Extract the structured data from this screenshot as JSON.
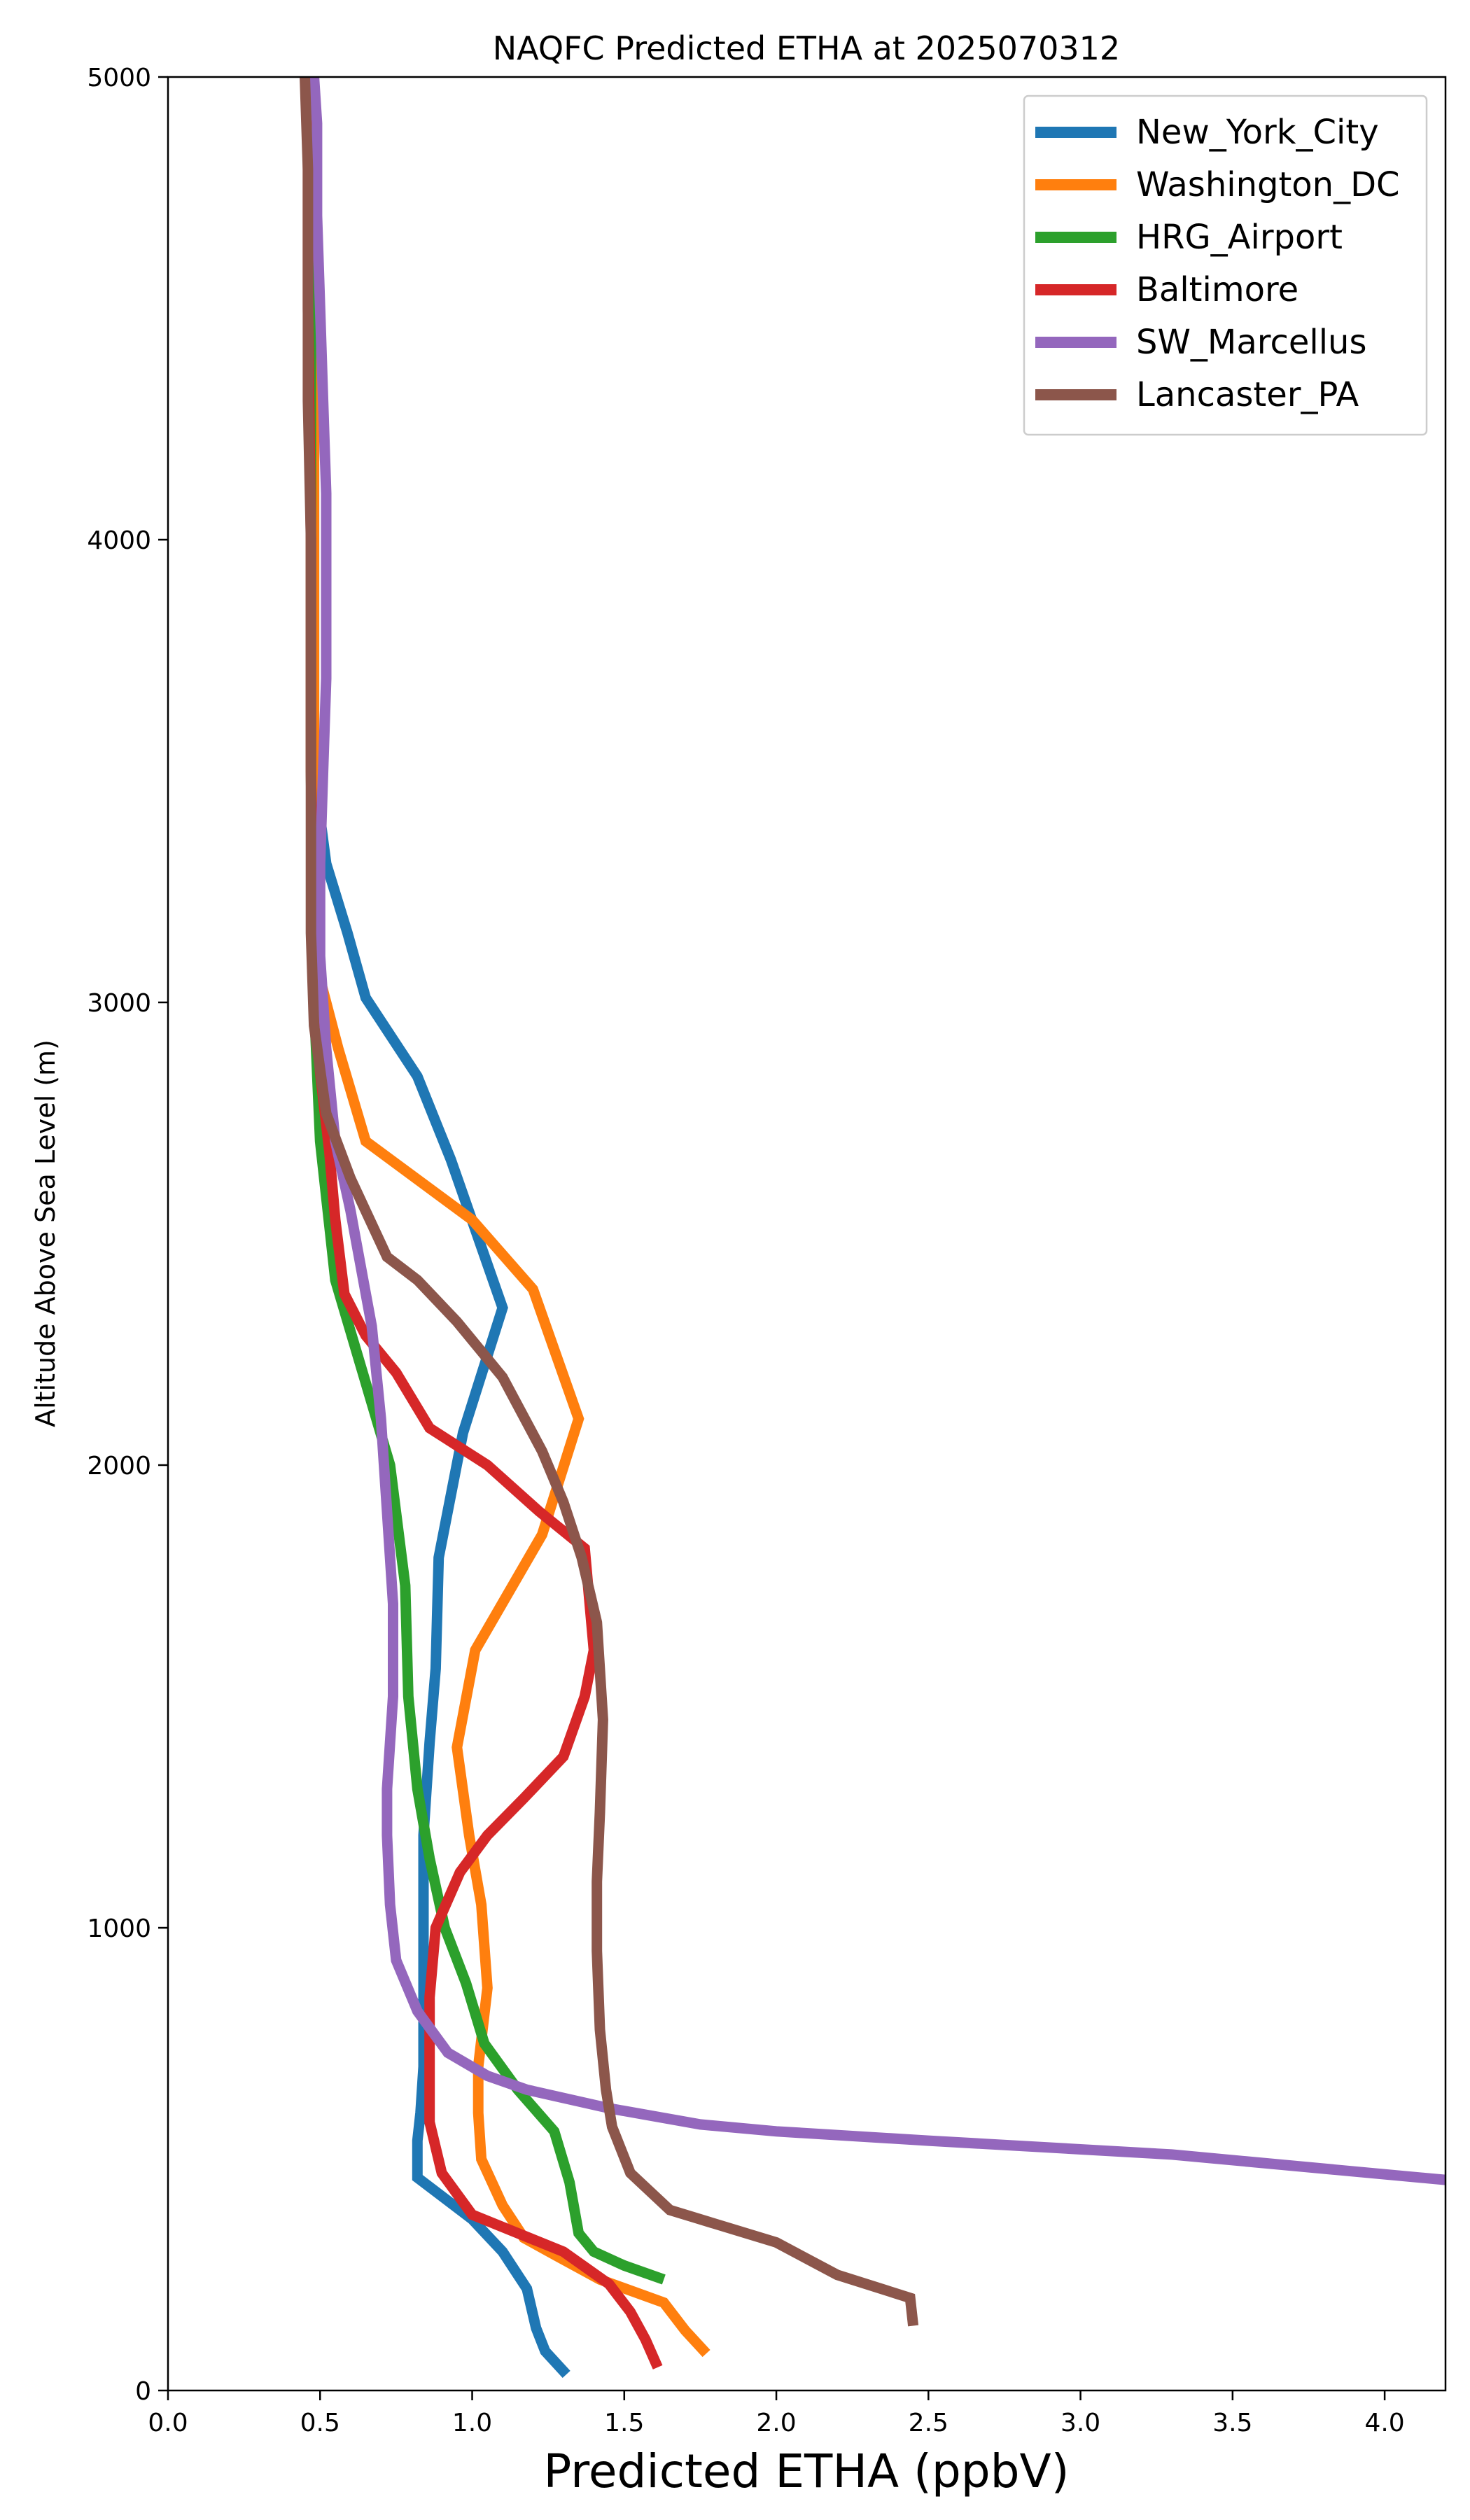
{
  "chart_data": {
    "type": "line",
    "title": "NAQFC Predicted ETHA at 2025070312",
    "xlabel": "Predicted ETHA (ppbV)",
    "ylabel": "Altitude Above Sea Level (m)",
    "xlim": [
      0,
      4.2
    ],
    "ylim": [
      0,
      5000
    ],
    "xticks": [
      0,
      0.5,
      1.0,
      1.5,
      2.0,
      2.5,
      3.0,
      3.5,
      4.0
    ],
    "xtick_labels": [
      "0.0",
      "0.5",
      "1.0",
      "1.5",
      "2.0",
      "2.5",
      "3.0",
      "3.5",
      "4.0"
    ],
    "yticks": [
      0,
      1000,
      2000,
      3000,
      4000,
      5000
    ],
    "ytick_labels": [
      "0",
      "1000",
      "2000",
      "3000",
      "4000",
      "5000"
    ],
    "grid": false,
    "legend_position": "top-right",
    "series": [
      {
        "name": "New_York_City",
        "color": "#1f77b4",
        "points": [
          [
            1.31,
            35
          ],
          [
            1.24,
            85
          ],
          [
            1.21,
            135
          ],
          [
            1.18,
            220
          ],
          [
            1.1,
            300
          ],
          [
            1.0,
            370
          ],
          [
            0.82,
            460
          ],
          [
            0.82,
            540
          ],
          [
            0.83,
            600
          ],
          [
            0.84,
            700
          ],
          [
            0.84,
            800
          ],
          [
            0.84,
            900
          ],
          [
            0.84,
            1000
          ],
          [
            0.84,
            1100
          ],
          [
            0.84,
            1200
          ],
          [
            0.85,
            1300
          ],
          [
            0.86,
            1400
          ],
          [
            0.88,
            1560
          ],
          [
            0.89,
            1800
          ],
          [
            0.97,
            2070
          ],
          [
            1.1,
            2340
          ],
          [
            0.93,
            2660
          ],
          [
            0.82,
            2840
          ],
          [
            0.65,
            3010
          ],
          [
            0.59,
            3150
          ],
          [
            0.52,
            3300
          ],
          [
            0.48,
            3500
          ],
          [
            0.48,
            3800
          ],
          [
            0.48,
            4200
          ],
          [
            0.48,
            4600
          ],
          [
            0.47,
            5000
          ]
        ]
      },
      {
        "name": "Washington_DC",
        "color": "#ff7f0e",
        "points": [
          [
            1.77,
            80
          ],
          [
            1.7,
            130
          ],
          [
            1.63,
            190
          ],
          [
            1.42,
            240
          ],
          [
            1.28,
            290
          ],
          [
            1.17,
            330
          ],
          [
            1.1,
            400
          ],
          [
            1.03,
            500
          ],
          [
            1.02,
            600
          ],
          [
            1.02,
            700
          ],
          [
            1.05,
            870
          ],
          [
            1.03,
            1050
          ],
          [
            0.99,
            1200
          ],
          [
            0.95,
            1390
          ],
          [
            1.01,
            1600
          ],
          [
            1.23,
            1850
          ],
          [
            1.35,
            2100
          ],
          [
            1.2,
            2380
          ],
          [
            1.0,
            2530
          ],
          [
            0.65,
            2700
          ],
          [
            0.56,
            2900
          ],
          [
            0.5,
            3050
          ],
          [
            0.48,
            3300
          ],
          [
            0.48,
            3700
          ],
          [
            0.48,
            4200
          ],
          [
            0.47,
            5000
          ]
        ]
      },
      {
        "name": "HRG_Airport",
        "color": "#2ca02c",
        "points": [
          [
            1.63,
            240
          ],
          [
            1.5,
            270
          ],
          [
            1.4,
            300
          ],
          [
            1.35,
            340
          ],
          [
            1.32,
            450
          ],
          [
            1.27,
            560
          ],
          [
            1.15,
            650
          ],
          [
            1.04,
            750
          ],
          [
            0.98,
            880
          ],
          [
            0.91,
            1000
          ],
          [
            0.86,
            1150
          ],
          [
            0.82,
            1300
          ],
          [
            0.79,
            1500
          ],
          [
            0.78,
            1740
          ],
          [
            0.73,
            2000
          ],
          [
            0.64,
            2200
          ],
          [
            0.55,
            2400
          ],
          [
            0.5,
            2700
          ],
          [
            0.48,
            3000
          ],
          [
            0.47,
            3500
          ],
          [
            0.47,
            4000
          ],
          [
            0.47,
            4500
          ],
          [
            0.46,
            5000
          ]
        ]
      },
      {
        "name": "Baltimore",
        "color": "#d62728",
        "points": [
          [
            1.61,
            50
          ],
          [
            1.57,
            110
          ],
          [
            1.52,
            170
          ],
          [
            1.45,
            230
          ],
          [
            1.3,
            300
          ],
          [
            1.15,
            340
          ],
          [
            1.0,
            380
          ],
          [
            0.9,
            470
          ],
          [
            0.86,
            580
          ],
          [
            0.86,
            700
          ],
          [
            0.86,
            850
          ],
          [
            0.88,
            1000
          ],
          [
            0.96,
            1120
          ],
          [
            1.05,
            1200
          ],
          [
            1.17,
            1280
          ],
          [
            1.3,
            1370
          ],
          [
            1.37,
            1500
          ],
          [
            1.4,
            1600
          ],
          [
            1.37,
            1820
          ],
          [
            1.22,
            1900
          ],
          [
            1.05,
            2000
          ],
          [
            0.86,
            2080
          ],
          [
            0.75,
            2200
          ],
          [
            0.65,
            2280
          ],
          [
            0.58,
            2370
          ],
          [
            0.55,
            2530
          ],
          [
            0.53,
            2680
          ],
          [
            0.5,
            2850
          ],
          [
            0.48,
            3050
          ],
          [
            0.47,
            3500
          ],
          [
            0.47,
            4000
          ],
          [
            0.46,
            4500
          ],
          [
            0.46,
            5000
          ]
        ]
      },
      {
        "name": "SW_Marcellus",
        "color": "#9467bd",
        "points": [
          [
            4.2,
            455
          ],
          [
            3.3,
            510
          ],
          [
            2.5,
            540
          ],
          [
            2.0,
            560
          ],
          [
            1.75,
            575
          ],
          [
            1.45,
            610
          ],
          [
            1.18,
            650
          ],
          [
            1.05,
            680
          ],
          [
            0.92,
            730
          ],
          [
            0.82,
            820
          ],
          [
            0.75,
            930
          ],
          [
            0.73,
            1050
          ],
          [
            0.72,
            1200
          ],
          [
            0.72,
            1300
          ],
          [
            0.73,
            1400
          ],
          [
            0.74,
            1500
          ],
          [
            0.74,
            1700
          ],
          [
            0.72,
            1900
          ],
          [
            0.7,
            2100
          ],
          [
            0.67,
            2300
          ],
          [
            0.6,
            2550
          ],
          [
            0.55,
            2700
          ],
          [
            0.52,
            2900
          ],
          [
            0.5,
            3100
          ],
          [
            0.5,
            3300
          ],
          [
            0.51,
            3500
          ],
          [
            0.52,
            3700
          ],
          [
            0.52,
            3900
          ],
          [
            0.52,
            4100
          ],
          [
            0.51,
            4300
          ],
          [
            0.5,
            4500
          ],
          [
            0.49,
            4700
          ],
          [
            0.49,
            4900
          ],
          [
            0.48,
            5000
          ]
        ]
      },
      {
        "name": "Lancaster_PA",
        "color": "#8c564b",
        "points": [
          [
            2.45,
            140
          ],
          [
            2.44,
            200
          ],
          [
            2.2,
            250
          ],
          [
            2.0,
            320
          ],
          [
            1.65,
            390
          ],
          [
            1.52,
            470
          ],
          [
            1.46,
            570
          ],
          [
            1.44,
            650
          ],
          [
            1.42,
            780
          ],
          [
            1.41,
            950
          ],
          [
            1.41,
            1100
          ],
          [
            1.42,
            1250
          ],
          [
            1.43,
            1450
          ],
          [
            1.41,
            1660
          ],
          [
            1.36,
            1800
          ],
          [
            1.3,
            1920
          ],
          [
            1.23,
            2030
          ],
          [
            1.1,
            2190
          ],
          [
            0.95,
            2310
          ],
          [
            0.82,
            2400
          ],
          [
            0.72,
            2450
          ],
          [
            0.6,
            2620
          ],
          [
            0.52,
            2760
          ],
          [
            0.48,
            2950
          ],
          [
            0.47,
            3150
          ],
          [
            0.47,
            3400
          ],
          [
            0.47,
            3700
          ],
          [
            0.47,
            4000
          ],
          [
            0.46,
            4300
          ],
          [
            0.46,
            4600
          ],
          [
            0.46,
            4800
          ],
          [
            0.45,
            5000
          ]
        ]
      }
    ]
  }
}
